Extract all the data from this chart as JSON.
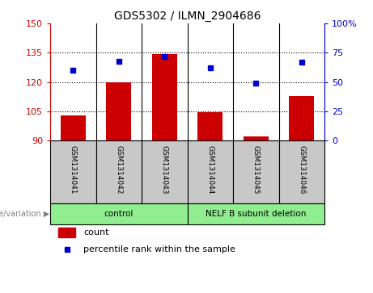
{
  "title": "GDS5302 / ILMN_2904686",
  "samples": [
    "GSM1314041",
    "GSM1314042",
    "GSM1314043",
    "GSM1314044",
    "GSM1314045",
    "GSM1314046"
  ],
  "counts": [
    103,
    120,
    134.5,
    104.5,
    92,
    113
  ],
  "percentile_ranks": [
    60,
    68,
    72,
    62,
    49,
    67
  ],
  "ylim_left": [
    90,
    150
  ],
  "ylim_right": [
    0,
    100
  ],
  "yticks_left": [
    90,
    105,
    120,
    135,
    150
  ],
  "yticks_right": [
    0,
    25,
    50,
    75,
    100
  ],
  "ytick_labels_left": [
    "90",
    "105",
    "120",
    "135",
    "150"
  ],
  "ytick_labels_right": [
    "0",
    "25",
    "50",
    "75",
    "100%"
  ],
  "bar_color": "#cc0000",
  "dot_color": "#0000cc",
  "groups": [
    {
      "label": "control",
      "start": 0,
      "end": 3
    },
    {
      "label": "NELF B subunit deletion",
      "start": 3,
      "end": 6
    }
  ],
  "genotype_label": "genotype/variation",
  "legend_count": "count",
  "legend_percentile": "percentile rank within the sample",
  "background_label": "#c8c8c8",
  "background_group": "#90ee90"
}
